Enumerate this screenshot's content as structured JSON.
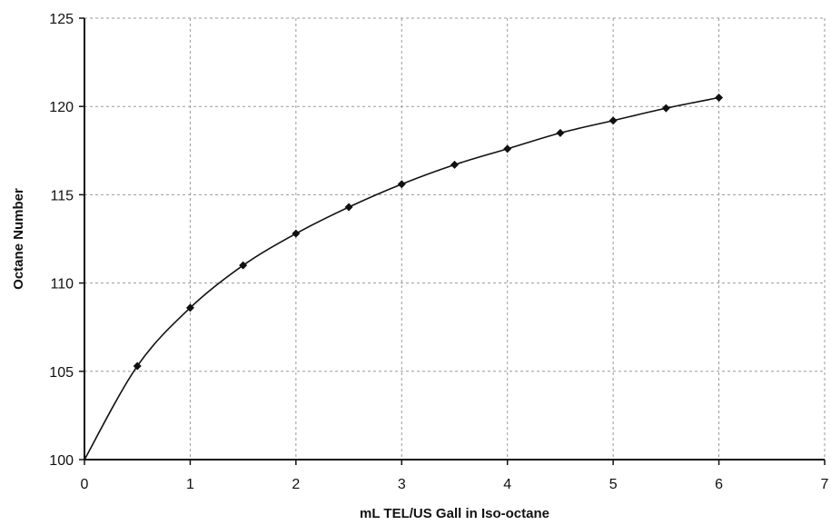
{
  "chart_data": {
    "type": "line",
    "title": "",
    "xlabel": "mL TEL/US Gall in Iso-octane",
    "ylabel": "Octane Number",
    "xlim": [
      0,
      7
    ],
    "ylim": [
      100,
      125
    ],
    "xticks": [
      "0",
      "1",
      "2",
      "3",
      "4",
      "5",
      "6",
      "7"
    ],
    "yticks": [
      "100",
      "105",
      "110",
      "115",
      "120",
      "125"
    ],
    "grid": true,
    "series": [
      {
        "x": [
          0,
          0.5,
          1,
          1.5,
          2,
          2.5,
          3,
          3.5,
          4,
          4.5,
          5,
          5.5,
          6
        ],
        "y": [
          100,
          105.3,
          108.6,
          111.0,
          112.8,
          114.3,
          115.6,
          116.7,
          117.6,
          118.5,
          119.2,
          119.9,
          120.5
        ],
        "color": "#111111",
        "marker": "diamond"
      }
    ]
  }
}
